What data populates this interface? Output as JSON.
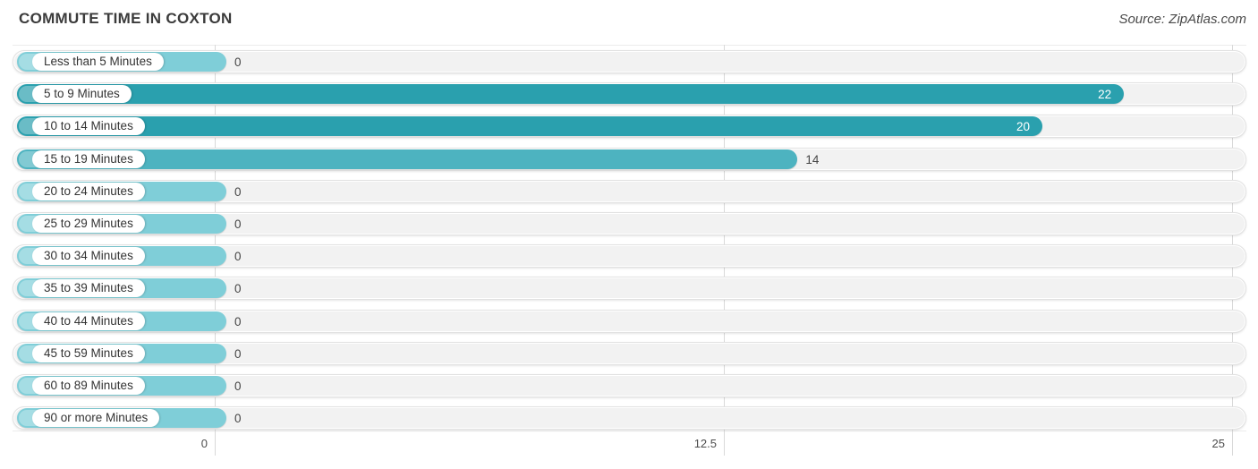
{
  "header": {
    "title": "COMMUTE TIME IN COXTON",
    "source": "Source: ZipAtlas.com"
  },
  "chart_data": {
    "type": "bar",
    "orientation": "horizontal",
    "title": "COMMUTE TIME IN COXTON",
    "categories": [
      "Less than 5 Minutes",
      "5 to 9 Minutes",
      "10 to 14 Minutes",
      "15 to 19 Minutes",
      "20 to 24 Minutes",
      "25 to 29 Minutes",
      "30 to 34 Minutes",
      "35 to 39 Minutes",
      "40 to 44 Minutes",
      "45 to 59 Minutes",
      "60 to 89 Minutes",
      "90 or more Minutes"
    ],
    "values": [
      0,
      22,
      20,
      14,
      0,
      0,
      0,
      0,
      0,
      0,
      0,
      0
    ],
    "xlim": [
      0,
      25
    ],
    "x_ticks": [
      0,
      12.5,
      25
    ],
    "x_tick_labels": [
      "0",
      "12.5",
      "25"
    ],
    "grid": true,
    "legend": false,
    "rows": [
      {
        "label": "Less than 5 Minutes",
        "value": 0,
        "display": "0",
        "color": "#7fced8",
        "value_inside": false
      },
      {
        "label": "5 to 9 Minutes",
        "value": 22,
        "display": "22",
        "color": "#2aa0ae",
        "value_inside": true
      },
      {
        "label": "10 to 14 Minutes",
        "value": 20,
        "display": "20",
        "color": "#2aa0ae",
        "value_inside": true
      },
      {
        "label": "15 to 19 Minutes",
        "value": 14,
        "display": "14",
        "color": "#4db3c0",
        "value_inside": false
      },
      {
        "label": "20 to 24 Minutes",
        "value": 0,
        "display": "0",
        "color": "#7fced8",
        "value_inside": false
      },
      {
        "label": "25 to 29 Minutes",
        "value": 0,
        "display": "0",
        "color": "#7fced8",
        "value_inside": false
      },
      {
        "label": "30 to 34 Minutes",
        "value": 0,
        "display": "0",
        "color": "#7fced8",
        "value_inside": false
      },
      {
        "label": "35 to 39 Minutes",
        "value": 0,
        "display": "0",
        "color": "#7fced8",
        "value_inside": false
      },
      {
        "label": "40 to 44 Minutes",
        "value": 0,
        "display": "0",
        "color": "#7fced8",
        "value_inside": false
      },
      {
        "label": "45 to 59 Minutes",
        "value": 0,
        "display": "0",
        "color": "#7fced8",
        "value_inside": false
      },
      {
        "label": "60 to 89 Minutes",
        "value": 0,
        "display": "0",
        "color": "#7fced8",
        "value_inside": false
      },
      {
        "label": "90 or more Minutes",
        "value": 0,
        "display": "0",
        "color": "#7fced8",
        "value_inside": false
      }
    ]
  },
  "colors": {
    "bar_high": "#2aa0ae",
    "bar_mid": "#4db3c0",
    "bar_zero": "#7fced8",
    "track": "#f2f2f2",
    "grid": "#d9d9d9",
    "title": "#3b3b3b",
    "source": "#4a4a4a",
    "tick": "#4d4d4d",
    "category_label": "#333333",
    "value_outside": "#454545",
    "value_inside": "#ffffff"
  }
}
